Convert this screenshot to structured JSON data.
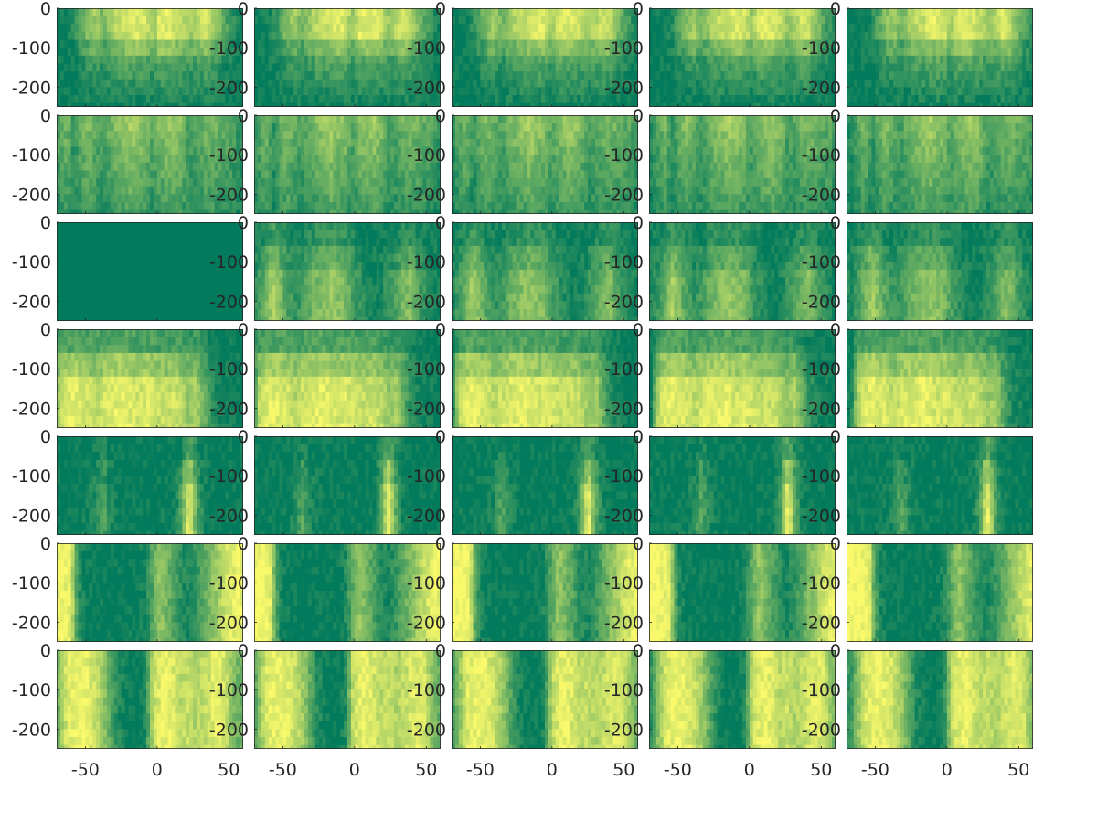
{
  "chart_data": {
    "type": "heatmap",
    "layout": {
      "rows": 7,
      "cols": 5
    },
    "title": "",
    "xlabel": "",
    "ylabel": "",
    "xlim": [
      -70,
      60
    ],
    "ylim": [
      -250,
      0
    ],
    "x_ticks": [
      -50,
      0,
      50
    ],
    "y_ticks": [
      0,
      -100,
      -200
    ],
    "x_tick_labels": [
      "-50",
      "0",
      "50"
    ],
    "y_tick_labels": [
      "0",
      "-100",
      "-200"
    ],
    "colormap": {
      "low": "#027a5c",
      "high": "#f9f96b"
    },
    "grid": false,
    "depth_levels": [
      0,
      -20,
      -40,
      -60,
      -80,
      -100,
      -120,
      -140,
      -160,
      -180,
      -200,
      -220,
      -240
    ],
    "rows": [
      {
        "pattern": "bright band in top ~70 m across most latitudes, fading with depth",
        "profile": [
          [
            -70,
            0.0
          ],
          [
            -60,
            0.05
          ],
          [
            -55,
            0.15
          ],
          [
            -50,
            0.35
          ],
          [
            -45,
            0.55
          ],
          [
            -40,
            0.65
          ],
          [
            -35,
            0.45
          ],
          [
            -30,
            0.6
          ],
          [
            -25,
            0.75
          ],
          [
            -20,
            0.8
          ],
          [
            -15,
            0.85
          ],
          [
            -10,
            0.9
          ],
          [
            -5,
            0.85
          ],
          [
            0,
            0.6
          ],
          [
            5,
            0.9
          ],
          [
            10,
            0.9
          ],
          [
            15,
            0.85
          ],
          [
            20,
            0.8
          ],
          [
            25,
            0.6
          ],
          [
            30,
            0.7
          ],
          [
            35,
            0.85
          ],
          [
            40,
            0.8
          ],
          [
            45,
            0.55
          ],
          [
            50,
            0.35
          ],
          [
            55,
            0.2
          ],
          [
            60,
            0.05
          ]
        ],
        "depth_falloff": "surface"
      },
      {
        "pattern": "moderate values, mottled vertical stripes, decreasing with depth",
        "profile": [
          [
            -70,
            0.15
          ],
          [
            -65,
            0.35
          ],
          [
            -60,
            0.5
          ],
          [
            -55,
            0.2
          ],
          [
            -50,
            0.45
          ],
          [
            -45,
            0.55
          ],
          [
            -40,
            0.4
          ],
          [
            -35,
            0.3
          ],
          [
            -30,
            0.45
          ],
          [
            -25,
            0.55
          ],
          [
            -20,
            0.6
          ],
          [
            -15,
            0.7
          ],
          [
            -10,
            0.6
          ],
          [
            -5,
            0.55
          ],
          [
            0,
            0.35
          ],
          [
            5,
            0.55
          ],
          [
            10,
            0.6
          ],
          [
            15,
            0.65
          ],
          [
            20,
            0.55
          ],
          [
            25,
            0.3
          ],
          [
            30,
            0.35
          ],
          [
            35,
            0.45
          ],
          [
            40,
            0.5
          ],
          [
            45,
            0.45
          ],
          [
            50,
            0.4
          ],
          [
            55,
            0.35
          ],
          [
            60,
            0.2
          ]
        ],
        "depth_falloff": "gradual"
      },
      {
        "pattern": "low values near surface; mid-latitude bright columns below ~80 m; first panel uniformly dark",
        "profile": [
          [
            -70,
            0.1
          ],
          [
            -65,
            0.25
          ],
          [
            -60,
            0.45
          ],
          [
            -55,
            0.7
          ],
          [
            -50,
            0.5
          ],
          [
            -45,
            0.3
          ],
          [
            -40,
            0.2
          ],
          [
            -35,
            0.25
          ],
          [
            -30,
            0.4
          ],
          [
            -25,
            0.5
          ],
          [
            -20,
            0.55
          ],
          [
            -15,
            0.6
          ],
          [
            -10,
            0.55
          ],
          [
            -5,
            0.5
          ],
          [
            0,
            0.3
          ],
          [
            5,
            0.2
          ],
          [
            10,
            0.1
          ],
          [
            15,
            0.05
          ],
          [
            20,
            0.1
          ],
          [
            25,
            0.2
          ],
          [
            30,
            0.3
          ],
          [
            35,
            0.45
          ],
          [
            40,
            0.55
          ],
          [
            45,
            0.35
          ],
          [
            50,
            0.2
          ],
          [
            55,
            0.1
          ],
          [
            60,
            0.05
          ]
        ],
        "depth_falloff": "deep"
      },
      {
        "pattern": "high values below ~100 m across -65..+35, darker near surface and at edges",
        "profile": [
          [
            -70,
            0.05
          ],
          [
            -65,
            0.75
          ],
          [
            -60,
            0.9
          ],
          [
            -55,
            0.95
          ],
          [
            -50,
            0.9
          ],
          [
            -45,
            0.85
          ],
          [
            -40,
            0.75
          ],
          [
            -35,
            0.85
          ],
          [
            -30,
            0.9
          ],
          [
            -25,
            0.92
          ],
          [
            -20,
            0.95
          ],
          [
            -15,
            0.9
          ],
          [
            -10,
            0.85
          ],
          [
            -5,
            0.9
          ],
          [
            0,
            0.85
          ],
          [
            5,
            0.8
          ],
          [
            10,
            0.8
          ],
          [
            15,
            0.85
          ],
          [
            20,
            0.75
          ],
          [
            25,
            0.6
          ],
          [
            30,
            0.7
          ],
          [
            35,
            0.45
          ],
          [
            40,
            0.2
          ],
          [
            45,
            0.1
          ],
          [
            50,
            0.05
          ],
          [
            55,
            0.05
          ],
          [
            60,
            0.0
          ]
        ],
        "depth_falloff": "deep"
      },
      {
        "pattern": "mostly dark, two narrow bright streaks near -35 and +25, brightest at bottom",
        "profile": [
          [
            -70,
            0.0
          ],
          [
            -60,
            0.0
          ],
          [
            -50,
            0.02
          ],
          [
            -45,
            0.05
          ],
          [
            -40,
            0.15
          ],
          [
            -35,
            0.35
          ],
          [
            -30,
            0.15
          ],
          [
            -25,
            0.05
          ],
          [
            -20,
            0.0
          ],
          [
            -10,
            0.0
          ],
          [
            0,
            0.0
          ],
          [
            10,
            0.02
          ],
          [
            15,
            0.05
          ],
          [
            20,
            0.3
          ],
          [
            23,
            0.75
          ],
          [
            26,
            0.95
          ],
          [
            30,
            0.4
          ],
          [
            35,
            0.1
          ],
          [
            40,
            0.0
          ],
          [
            50,
            0.0
          ],
          [
            60,
            0.0
          ]
        ],
        "depth_falloff": "deep"
      },
      {
        "pattern": "bright at southern edge (< -55) and northern edge (> 45), dark interior with streak near 0..+10",
        "profile": [
          [
            -70,
            1.0
          ],
          [
            -65,
            1.0
          ],
          [
            -60,
            0.95
          ],
          [
            -57,
            0.9
          ],
          [
            -54,
            0.4
          ],
          [
            -50,
            0.1
          ],
          [
            -45,
            0.02
          ],
          [
            -40,
            0.0
          ],
          [
            -30,
            0.0
          ],
          [
            -20,
            0.0
          ],
          [
            -10,
            0.02
          ],
          [
            -5,
            0.1
          ],
          [
            0,
            0.35
          ],
          [
            5,
            0.6
          ],
          [
            10,
            0.45
          ],
          [
            15,
            0.3
          ],
          [
            20,
            0.15
          ],
          [
            25,
            0.1
          ],
          [
            30,
            0.2
          ],
          [
            35,
            0.35
          ],
          [
            40,
            0.5
          ],
          [
            45,
            0.65
          ],
          [
            50,
            0.8
          ],
          [
            55,
            0.9
          ],
          [
            60,
            0.95
          ]
        ],
        "depth_falloff": "uniform"
      },
      {
        "pattern": "bright wedges -60..-30 and 0..+50, dark bands near -25..-5 and deep near 55",
        "profile": [
          [
            -70,
            0.2
          ],
          [
            -65,
            0.55
          ],
          [
            -60,
            0.85
          ],
          [
            -55,
            0.95
          ],
          [
            -50,
            0.95
          ],
          [
            -45,
            0.9
          ],
          [
            -40,
            0.8
          ],
          [
            -35,
            0.65
          ],
          [
            -30,
            0.4
          ],
          [
            -25,
            0.15
          ],
          [
            -20,
            0.05
          ],
          [
            -15,
            0.0
          ],
          [
            -10,
            0.0
          ],
          [
            -5,
            0.1
          ],
          [
            0,
            0.75
          ],
          [
            5,
            0.9
          ],
          [
            10,
            0.95
          ],
          [
            15,
            0.85
          ],
          [
            20,
            0.75
          ],
          [
            25,
            0.8
          ],
          [
            30,
            0.7
          ],
          [
            35,
            0.75
          ],
          [
            40,
            0.85
          ],
          [
            45,
            0.9
          ],
          [
            50,
            0.85
          ],
          [
            55,
            0.6
          ],
          [
            60,
            0.4
          ]
        ],
        "depth_falloff": "uniform"
      }
    ],
    "panel_notes": {
      "row_3_col_1": "uniform low (dark green) field",
      "row_7": "bright wedges widen toward bottom"
    }
  }
}
